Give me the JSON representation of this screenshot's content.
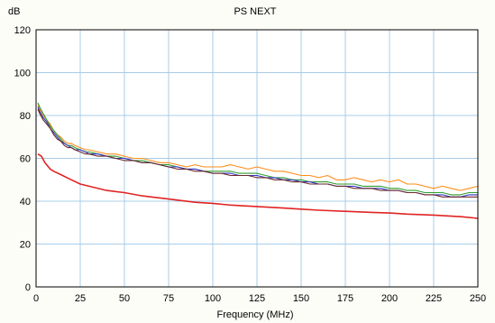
{
  "chart_data": {
    "type": "line",
    "title": "PS NEXT",
    "xlabel": "Frequency (MHz)",
    "ylabel": "dB",
    "xlim": [
      0,
      250
    ],
    "ylim": [
      0,
      120
    ],
    "x_ticks": [
      0,
      25,
      50,
      75,
      100,
      125,
      150,
      175,
      200,
      225,
      250
    ],
    "y_ticks": [
      0,
      20,
      40,
      60,
      80,
      100,
      120
    ],
    "grid": true,
    "background": "#ffffff",
    "grid_color": "#a8cce8",
    "series": [
      {
        "color": "#ff8c1a",
        "points": [
          [
            1,
            85
          ],
          [
            2,
            83
          ],
          [
            4,
            80
          ],
          [
            6,
            78
          ],
          [
            8,
            76
          ],
          [
            10,
            73
          ],
          [
            12,
            71
          ],
          [
            14,
            70
          ],
          [
            16,
            68
          ],
          [
            18,
            67
          ],
          [
            20,
            67
          ],
          [
            22,
            66
          ],
          [
            25,
            65
          ],
          [
            28,
            64
          ],
          [
            30,
            64
          ],
          [
            35,
            63
          ],
          [
            40,
            62
          ],
          [
            45,
            62
          ],
          [
            50,
            61
          ],
          [
            55,
            60
          ],
          [
            60,
            60
          ],
          [
            65,
            59
          ],
          [
            70,
            58
          ],
          [
            75,
            58
          ],
          [
            80,
            57
          ],
          [
            85,
            56
          ],
          [
            90,
            57
          ],
          [
            95,
            56
          ],
          [
            100,
            56
          ],
          [
            105,
            56
          ],
          [
            110,
            57
          ],
          [
            115,
            56
          ],
          [
            120,
            55
          ],
          [
            125,
            56
          ],
          [
            130,
            55
          ],
          [
            135,
            54
          ],
          [
            140,
            54
          ],
          [
            145,
            53
          ],
          [
            150,
            52
          ],
          [
            155,
            52
          ],
          [
            160,
            51
          ],
          [
            165,
            52
          ],
          [
            170,
            50
          ],
          [
            175,
            50
          ],
          [
            180,
            51
          ],
          [
            185,
            50
          ],
          [
            190,
            49
          ],
          [
            195,
            50
          ],
          [
            200,
            49
          ],
          [
            205,
            50
          ],
          [
            210,
            48
          ],
          [
            215,
            48
          ],
          [
            220,
            47
          ],
          [
            225,
            46
          ],
          [
            230,
            47
          ],
          [
            235,
            46
          ],
          [
            240,
            45
          ],
          [
            245,
            46
          ],
          [
            250,
            47
          ]
        ]
      },
      {
        "color": "#2f9e2f",
        "points": [
          [
            1,
            86
          ],
          [
            2,
            84
          ],
          [
            4,
            81
          ],
          [
            6,
            78
          ],
          [
            8,
            75
          ],
          [
            10,
            73
          ],
          [
            12,
            71
          ],
          [
            14,
            69
          ],
          [
            16,
            67
          ],
          [
            18,
            66
          ],
          [
            20,
            66
          ],
          [
            22,
            65
          ],
          [
            25,
            64
          ],
          [
            28,
            63
          ],
          [
            30,
            63
          ],
          [
            35,
            62
          ],
          [
            40,
            61
          ],
          [
            45,
            61
          ],
          [
            50,
            60
          ],
          [
            55,
            59
          ],
          [
            60,
            59
          ],
          [
            65,
            58
          ],
          [
            70,
            57
          ],
          [
            75,
            57
          ],
          [
            80,
            56
          ],
          [
            85,
            55
          ],
          [
            90,
            55
          ],
          [
            95,
            54
          ],
          [
            100,
            54
          ],
          [
            105,
            54
          ],
          [
            110,
            54
          ],
          [
            115,
            53
          ],
          [
            120,
            53
          ],
          [
            125,
            53
          ],
          [
            130,
            52
          ],
          [
            135,
            51
          ],
          [
            140,
            51
          ],
          [
            145,
            50
          ],
          [
            150,
            50
          ],
          [
            155,
            49
          ],
          [
            160,
            49
          ],
          [
            165,
            49
          ],
          [
            170,
            48
          ],
          [
            175,
            48
          ],
          [
            180,
            48
          ],
          [
            185,
            47
          ],
          [
            190,
            47
          ],
          [
            195,
            47
          ],
          [
            200,
            46
          ],
          [
            205,
            46
          ],
          [
            210,
            45
          ],
          [
            215,
            45
          ],
          [
            220,
            44
          ],
          [
            225,
            44
          ],
          [
            230,
            44
          ],
          [
            235,
            43
          ],
          [
            240,
            43
          ],
          [
            245,
            44
          ],
          [
            250,
            44
          ]
        ]
      },
      {
        "color": "#3535c8",
        "points": [
          [
            1,
            84
          ],
          [
            2,
            82
          ],
          [
            4,
            79
          ],
          [
            6,
            77
          ],
          [
            8,
            74
          ],
          [
            10,
            72
          ],
          [
            12,
            70
          ],
          [
            14,
            68
          ],
          [
            16,
            67
          ],
          [
            18,
            66
          ],
          [
            20,
            65
          ],
          [
            22,
            64
          ],
          [
            25,
            64
          ],
          [
            28,
            63
          ],
          [
            30,
            62
          ],
          [
            35,
            62
          ],
          [
            40,
            61
          ],
          [
            45,
            60
          ],
          [
            50,
            60
          ],
          [
            55,
            59
          ],
          [
            60,
            58
          ],
          [
            65,
            58
          ],
          [
            70,
            57
          ],
          [
            75,
            56
          ],
          [
            80,
            56
          ],
          [
            85,
            55
          ],
          [
            90,
            55
          ],
          [
            95,
            54
          ],
          [
            100,
            53
          ],
          [
            105,
            53
          ],
          [
            110,
            53
          ],
          [
            115,
            52
          ],
          [
            120,
            52
          ],
          [
            125,
            52
          ],
          [
            130,
            51
          ],
          [
            135,
            51
          ],
          [
            140,
            50
          ],
          [
            145,
            50
          ],
          [
            150,
            49
          ],
          [
            155,
            49
          ],
          [
            160,
            48
          ],
          [
            165,
            48
          ],
          [
            170,
            47
          ],
          [
            175,
            47
          ],
          [
            180,
            47
          ],
          [
            185,
            46
          ],
          [
            190,
            46
          ],
          [
            195,
            46
          ],
          [
            200,
            45
          ],
          [
            205,
            45
          ],
          [
            210,
            44
          ],
          [
            215,
            44
          ],
          [
            220,
            43
          ],
          [
            225,
            43
          ],
          [
            230,
            43
          ],
          [
            235,
            42
          ],
          [
            240,
            42
          ],
          [
            245,
            43
          ],
          [
            250,
            43
          ]
        ]
      },
      {
        "color": "#6b2a2a",
        "points": [
          [
            1,
            83
          ],
          [
            2,
            81
          ],
          [
            4,
            78
          ],
          [
            6,
            76
          ],
          [
            8,
            74
          ],
          [
            10,
            71
          ],
          [
            12,
            69
          ],
          [
            14,
            68
          ],
          [
            16,
            66
          ],
          [
            18,
            65
          ],
          [
            20,
            65
          ],
          [
            22,
            64
          ],
          [
            25,
            63
          ],
          [
            28,
            62
          ],
          [
            30,
            62
          ],
          [
            35,
            61
          ],
          [
            40,
            61
          ],
          [
            45,
            60
          ],
          [
            50,
            59
          ],
          [
            55,
            59
          ],
          [
            60,
            58
          ],
          [
            65,
            58
          ],
          [
            70,
            57
          ],
          [
            75,
            56
          ],
          [
            80,
            55
          ],
          [
            85,
            55
          ],
          [
            90,
            54
          ],
          [
            95,
            54
          ],
          [
            100,
            53
          ],
          [
            105,
            53
          ],
          [
            110,
            52
          ],
          [
            115,
            52
          ],
          [
            120,
            52
          ],
          [
            125,
            51
          ],
          [
            130,
            51
          ],
          [
            135,
            50
          ],
          [
            140,
            50
          ],
          [
            145,
            49
          ],
          [
            150,
            49
          ],
          [
            155,
            48
          ],
          [
            160,
            48
          ],
          [
            165,
            48
          ],
          [
            170,
            47
          ],
          [
            175,
            47
          ],
          [
            180,
            46
          ],
          [
            185,
            46
          ],
          [
            190,
            46
          ],
          [
            195,
            45
          ],
          [
            200,
            45
          ],
          [
            205,
            45
          ],
          [
            210,
            44
          ],
          [
            215,
            44
          ],
          [
            220,
            43
          ],
          [
            225,
            43
          ],
          [
            230,
            42
          ],
          [
            235,
            42
          ],
          [
            240,
            42
          ],
          [
            245,
            42
          ],
          [
            250,
            42
          ]
        ]
      },
      {
        "color": "#e02424",
        "points": [
          [
            1,
            62
          ],
          [
            3,
            61
          ],
          [
            5,
            58
          ],
          [
            8,
            55
          ],
          [
            10,
            54
          ],
          [
            15,
            52
          ],
          [
            20,
            50
          ],
          [
            25,
            48
          ],
          [
            30,
            47
          ],
          [
            40,
            45
          ],
          [
            50,
            44
          ],
          [
            60,
            42.5
          ],
          [
            75,
            41
          ],
          [
            90,
            39.5
          ],
          [
            100,
            39
          ],
          [
            110,
            38.2
          ],
          [
            125,
            37.5
          ],
          [
            140,
            36.8
          ],
          [
            150,
            36.3
          ],
          [
            160,
            35.8
          ],
          [
            175,
            35.3
          ],
          [
            190,
            34.8
          ],
          [
            200,
            34.5
          ],
          [
            210,
            34
          ],
          [
            225,
            33.5
          ],
          [
            235,
            33
          ],
          [
            240,
            32.8
          ],
          [
            250,
            32
          ]
        ]
      }
    ]
  }
}
